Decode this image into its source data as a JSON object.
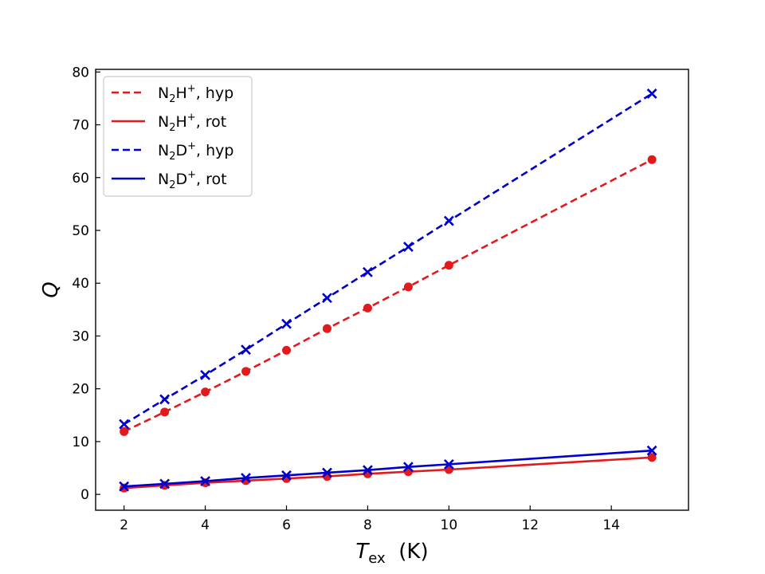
{
  "chart_data": {
    "type": "line",
    "xlabel": "T_ex (K)",
    "xlabel_main": "T",
    "xlabel_sub": "ex",
    "xlabel_unit": "(K)",
    "ylabel": "Q",
    "xlim": [
      1.3,
      15.9
    ],
    "ylim": [
      -3,
      80.5
    ],
    "xticks": [
      2,
      4,
      6,
      8,
      10,
      12,
      14
    ],
    "yticks": [
      0,
      10,
      20,
      30,
      40,
      50,
      60,
      70,
      80
    ],
    "x": [
      2,
      3,
      4,
      5,
      6,
      7,
      8,
      9,
      10,
      15
    ],
    "legend_position": "upper left",
    "series": [
      {
        "name": "N2H+, hyp",
        "label_base": "N",
        "label_sub": "2",
        "label_mid": "H",
        "label_sup": "+",
        "label_tail": ", hyp",
        "color": "#e31a1c",
        "linestyle": "dashed",
        "marker": "circle",
        "values": [
          11.9,
          15.6,
          19.4,
          23.3,
          27.3,
          31.4,
          35.3,
          39.3,
          43.4,
          63.4
        ]
      },
      {
        "name": "N2H+, rot",
        "label_base": "N",
        "label_sub": "2",
        "label_mid": "H",
        "label_sup": "+",
        "label_tail": ", rot",
        "color": "#e31a1c",
        "linestyle": "solid",
        "marker": "circle",
        "values": [
          1.2,
          1.7,
          2.2,
          2.6,
          3.0,
          3.4,
          3.9,
          4.3,
          4.7,
          7.0
        ]
      },
      {
        "name": "N2D+, hyp",
        "label_base": "N",
        "label_sub": "2",
        "label_mid": "D",
        "label_sup": "+",
        "label_tail": ", hyp",
        "color": "#0000cc",
        "linestyle": "dashed",
        "marker": "x",
        "values": [
          13.3,
          18.0,
          22.6,
          27.4,
          32.3,
          37.2,
          42.1,
          46.9,
          51.8,
          75.9
        ]
      },
      {
        "name": "N2D+, rot",
        "label_base": "N",
        "label_sub": "2",
        "label_mid": "D",
        "label_sup": "+",
        "label_tail": ", rot",
        "color": "#0000cc",
        "linestyle": "solid",
        "marker": "x",
        "values": [
          1.5,
          2.0,
          2.5,
          3.1,
          3.6,
          4.1,
          4.6,
          5.2,
          5.7,
          8.3
        ]
      }
    ]
  }
}
